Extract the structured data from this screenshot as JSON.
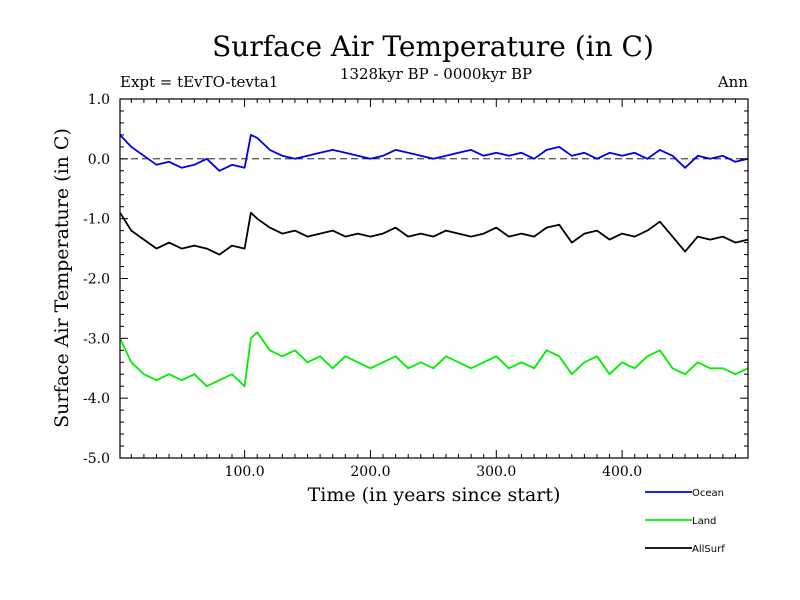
{
  "chart_data": {
    "type": "line",
    "title": "Surface Air Temperature (in C)",
    "subtitle": "1328kyr BP - 0000kyr BP",
    "expt_label": "Expt = tEvTO-tevta1",
    "period_label": "Ann",
    "xlabel": "Time (in years since start)",
    "ylabel": "Surface Air Temperature (in C)",
    "xlim": [
      1,
      500
    ],
    "ylim": [
      -5.0,
      1.0
    ],
    "x_ticks": [
      100,
      200,
      300,
      400
    ],
    "x_tick_labels": [
      "100.0",
      "200.0",
      "300.0",
      "400.0"
    ],
    "y_ticks": [
      1.0,
      0.0,
      -1.0,
      -2.0,
      -3.0,
      -4.0,
      -5.0
    ],
    "y_tick_labels": [
      "1.0",
      "0.0",
      "-1.0",
      "-2.0",
      "-3.0",
      "-4.0",
      "-5.0"
    ],
    "reference_line": 0.0,
    "legend_position": "bottom-right, below plot",
    "series": [
      {
        "name": "Ocean",
        "color": "#0000ee",
        "x": [
          1,
          10,
          20,
          30,
          40,
          50,
          60,
          70,
          80,
          90,
          100,
          105,
          110,
          120,
          130,
          140,
          150,
          160,
          170,
          180,
          190,
          200,
          210,
          220,
          230,
          240,
          250,
          260,
          270,
          280,
          290,
          300,
          310,
          320,
          330,
          340,
          350,
          360,
          370,
          380,
          390,
          400,
          410,
          420,
          430,
          440,
          450,
          460,
          470,
          480,
          490,
          500
        ],
        "values": [
          0.4,
          0.2,
          0.05,
          -0.1,
          -0.05,
          -0.15,
          -0.1,
          0.0,
          -0.2,
          -0.1,
          -0.15,
          0.4,
          0.35,
          0.15,
          0.05,
          0.0,
          0.05,
          0.1,
          0.15,
          0.1,
          0.05,
          0.0,
          0.05,
          0.15,
          0.1,
          0.05,
          0.0,
          0.05,
          0.1,
          0.15,
          0.05,
          0.1,
          0.05,
          0.1,
          0.0,
          0.15,
          0.2,
          0.05,
          0.1,
          0.0,
          0.1,
          0.05,
          0.1,
          0.0,
          0.15,
          0.05,
          -0.15,
          0.05,
          0.0,
          0.05,
          -0.05,
          0.0
        ]
      },
      {
        "name": "Land",
        "color": "#00ee00",
        "x": [
          1,
          10,
          20,
          30,
          40,
          50,
          60,
          70,
          80,
          90,
          100,
          105,
          110,
          120,
          130,
          140,
          150,
          160,
          170,
          180,
          190,
          200,
          210,
          220,
          230,
          240,
          250,
          260,
          270,
          280,
          290,
          300,
          310,
          320,
          330,
          340,
          350,
          360,
          370,
          380,
          390,
          400,
          410,
          420,
          430,
          440,
          450,
          460,
          470,
          480,
          490,
          500
        ],
        "values": [
          -3.0,
          -3.4,
          -3.6,
          -3.7,
          -3.6,
          -3.7,
          -3.6,
          -3.8,
          -3.7,
          -3.6,
          -3.8,
          -3.0,
          -2.9,
          -3.2,
          -3.3,
          -3.2,
          -3.4,
          -3.3,
          -3.5,
          -3.3,
          -3.4,
          -3.5,
          -3.4,
          -3.3,
          -3.5,
          -3.4,
          -3.5,
          -3.3,
          -3.4,
          -3.5,
          -3.4,
          -3.3,
          -3.5,
          -3.4,
          -3.5,
          -3.2,
          -3.3,
          -3.6,
          -3.4,
          -3.3,
          -3.6,
          -3.4,
          -3.5,
          -3.3,
          -3.2,
          -3.5,
          -3.6,
          -3.4,
          -3.5,
          -3.5,
          -3.6,
          -3.5
        ]
      },
      {
        "name": "AllSurf",
        "color": "#000000",
        "x": [
          1,
          10,
          20,
          30,
          40,
          50,
          60,
          70,
          80,
          90,
          100,
          105,
          110,
          120,
          130,
          140,
          150,
          160,
          170,
          180,
          190,
          200,
          210,
          220,
          230,
          240,
          250,
          260,
          270,
          280,
          290,
          300,
          310,
          320,
          330,
          340,
          350,
          360,
          370,
          380,
          390,
          400,
          410,
          420,
          430,
          440,
          450,
          460,
          470,
          480,
          490,
          500
        ],
        "values": [
          -0.9,
          -1.2,
          -1.35,
          -1.5,
          -1.4,
          -1.5,
          -1.45,
          -1.5,
          -1.6,
          -1.45,
          -1.5,
          -0.9,
          -1.0,
          -1.15,
          -1.25,
          -1.2,
          -1.3,
          -1.25,
          -1.2,
          -1.3,
          -1.25,
          -1.3,
          -1.25,
          -1.15,
          -1.3,
          -1.25,
          -1.3,
          -1.2,
          -1.25,
          -1.3,
          -1.25,
          -1.15,
          -1.3,
          -1.25,
          -1.3,
          -1.15,
          -1.1,
          -1.4,
          -1.25,
          -1.2,
          -1.35,
          -1.25,
          -1.3,
          -1.2,
          -1.05,
          -1.3,
          -1.55,
          -1.3,
          -1.35,
          -1.3,
          -1.4,
          -1.35
        ]
      }
    ]
  }
}
